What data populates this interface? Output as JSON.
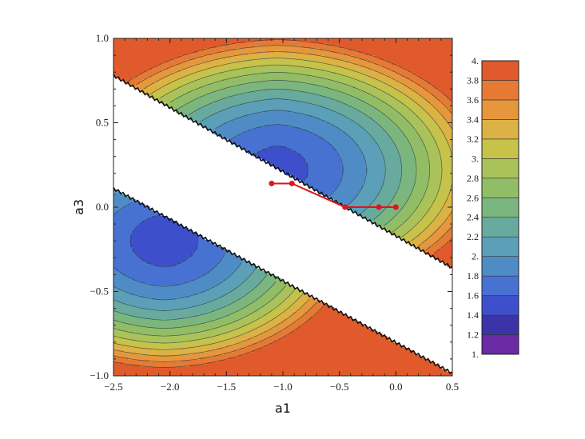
{
  "chart_data": {
    "type": "contour",
    "xlabel": "a1",
    "ylabel": "a3",
    "xlim": [
      -2.5,
      0.5
    ],
    "ylim": [
      -1.0,
      1.0
    ],
    "x_ticks": [
      {
        "value": -2.5,
        "label": "−2.5"
      },
      {
        "value": -2.0,
        "label": "−2.0"
      },
      {
        "value": -1.5,
        "label": "−1.5"
      },
      {
        "value": -1.0,
        "label": "−1.0"
      },
      {
        "value": -0.5,
        "label": "−0.5"
      },
      {
        "value": 0.0,
        "label": "0.0"
      },
      {
        "value": 0.5,
        "label": "0.5"
      }
    ],
    "y_ticks": [
      {
        "value": -1.0,
        "label": "−1.0"
      },
      {
        "value": -0.5,
        "label": "−0.5"
      },
      {
        "value": 0.0,
        "label": "0.0"
      },
      {
        "value": 0.5,
        "label": "0.5"
      },
      {
        "value": 1.0,
        "label": "1.0"
      }
    ],
    "path_color": "#e0141a",
    "path": [
      {
        "x": -1.1,
        "y": 0.14
      },
      {
        "x": -0.92,
        "y": 0.14
      },
      {
        "x": -0.45,
        "y": 0.0
      },
      {
        "x": -0.15,
        "y": 0.0
      },
      {
        "x": 0.0,
        "y": 0.0
      }
    ],
    "colorbar": {
      "levels": [
        1.0,
        1.2,
        1.4,
        1.6,
        1.8,
        2.0,
        2.2,
        2.4,
        2.6,
        2.8,
        3.0,
        3.2,
        3.4,
        3.6,
        3.8,
        4.0
      ],
      "labels": [
        "1.",
        "1.2",
        "1.4",
        "1.6",
        "1.8",
        "2.",
        "2.2",
        "2.4",
        "2.6",
        "2.8",
        "3.",
        "3.2",
        "3.4",
        "3.6",
        "3.8",
        "4."
      ],
      "colors": [
        "#6a2aa3",
        "#3b33a8",
        "#3e4fcc",
        "#4772d2",
        "#4f8cc6",
        "#5b9fb8",
        "#69aa9e",
        "#7bb67f",
        "#92bd67",
        "#a9c35a",
        "#c6c24a",
        "#ddb244",
        "#e6963c",
        "#e67a34",
        "#e05a2c"
      ]
    }
  }
}
